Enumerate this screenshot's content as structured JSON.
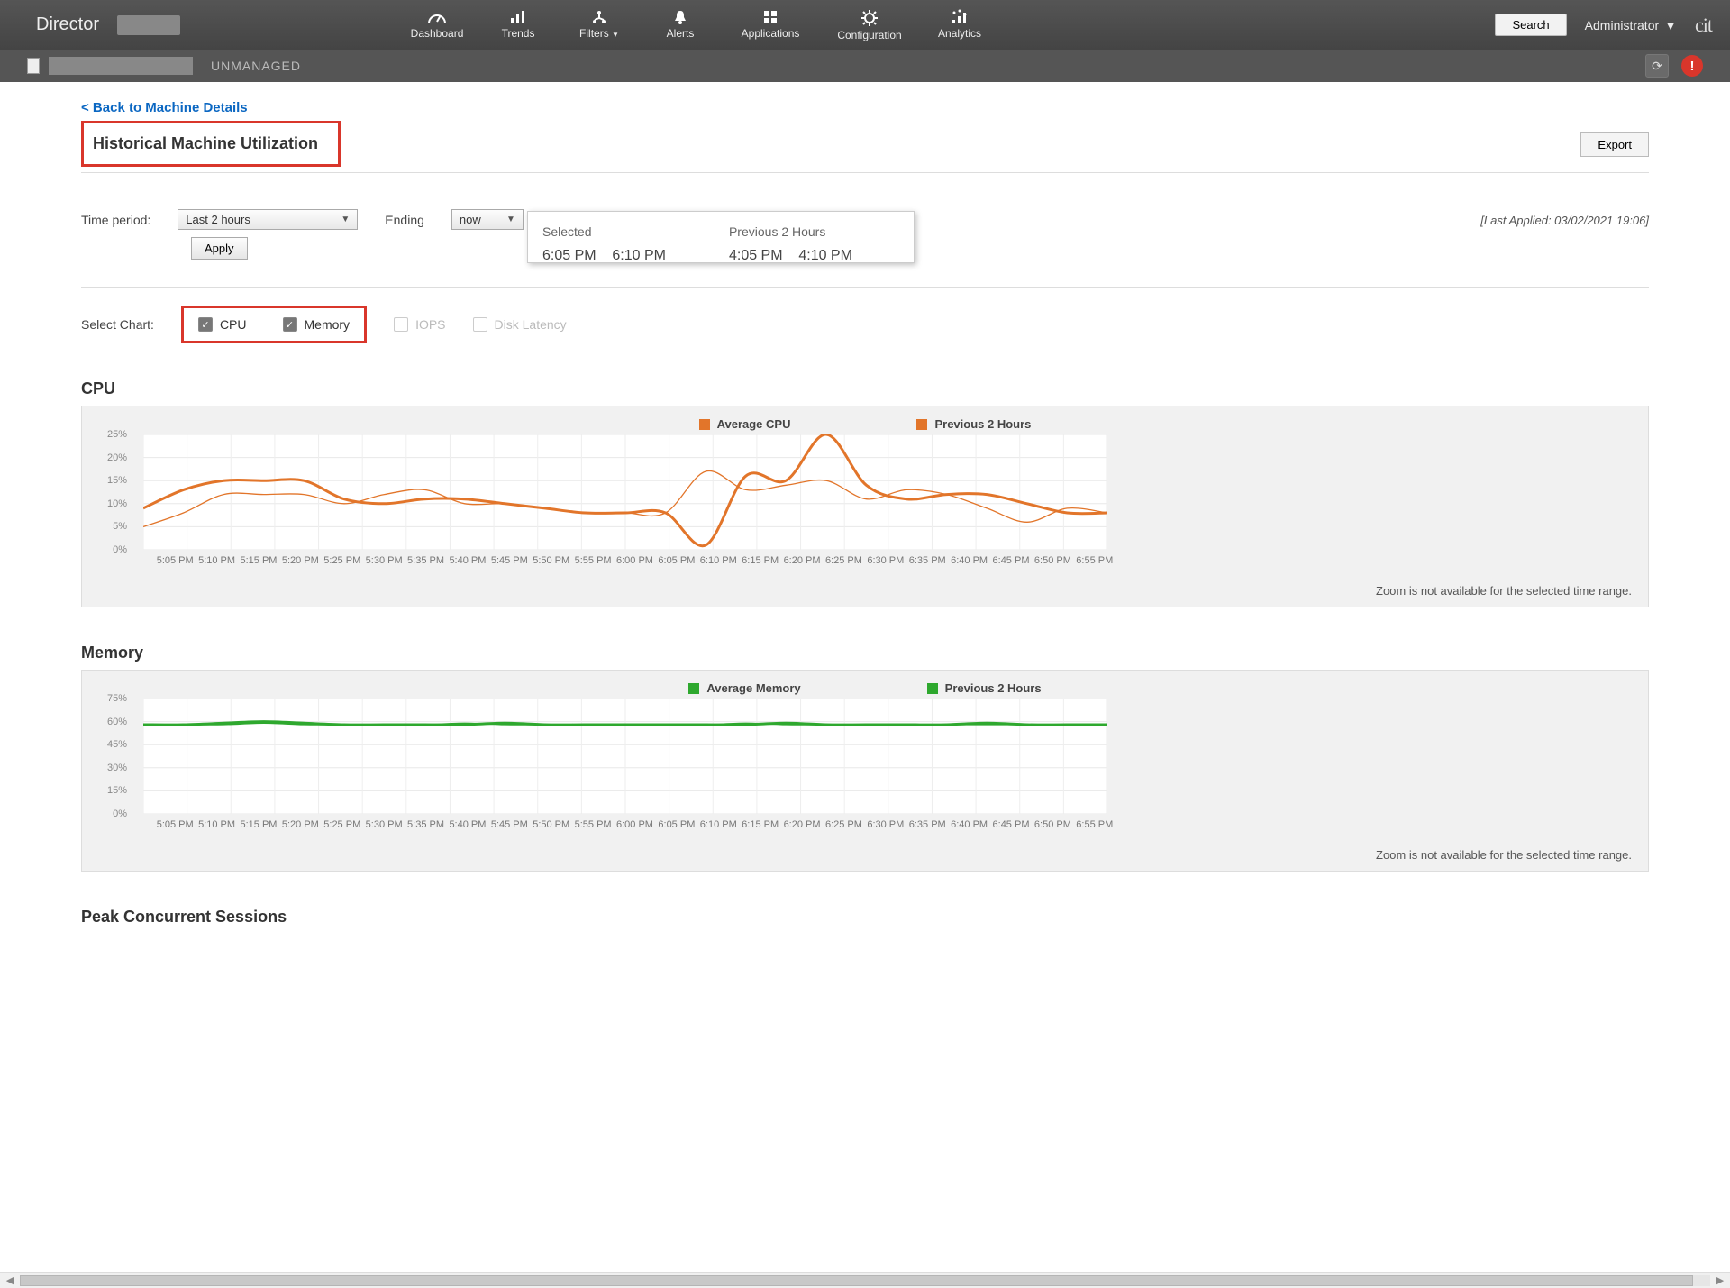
{
  "brand": "Director",
  "topNav": [
    {
      "label": "Dashboard"
    },
    {
      "label": "Trends"
    },
    {
      "label": "Filters"
    },
    {
      "label": "Alerts"
    },
    {
      "label": "Applications"
    },
    {
      "label": "Configuration"
    },
    {
      "label": "Analytics"
    }
  ],
  "searchLabel": "Search",
  "adminLabel": "Administrator",
  "rightLogo": "cit",
  "subbar": {
    "status": "UNMANAGED"
  },
  "backLink": "< Back to Machine Details",
  "pageTitle": "Historical Machine Utilization",
  "exportLabel": "Export",
  "filters": {
    "timePeriodLabel": "Time period:",
    "timePeriodValue": "Last 2 hours",
    "endingLabel": "Ending",
    "endingValue": "now",
    "applyLabel": "Apply",
    "lastApplied": "[Last Applied: 03/02/2021 19:06]"
  },
  "popup": {
    "col1": "Selected",
    "col2": "Previous 2 Hours",
    "t1a": "6:05 PM",
    "t1b": "6:10 PM",
    "t2a": "4:05 PM",
    "t2b": "4:10 PM"
  },
  "selectChartLabel": "Select Chart:",
  "checks": {
    "cpu": "CPU",
    "memory": "Memory",
    "iops": "IOPS",
    "disklat": "Disk Latency"
  },
  "xTicks": [
    "5:05 PM",
    "5:10 PM",
    "5:15 PM",
    "5:20 PM",
    "5:25 PM",
    "5:30 PM",
    "5:35 PM",
    "5:40 PM",
    "5:45 PM",
    "5:50 PM",
    "5:55 PM",
    "6:00 PM",
    "6:05 PM",
    "6:10 PM",
    "6:15 PM",
    "6:20 PM",
    "6:25 PM",
    "6:30 PM",
    "6:35 PM",
    "6:40 PM",
    "6:45 PM",
    "6:50 PM",
    "6:55 PM"
  ],
  "cpu": {
    "title": "CPU",
    "legend1": "Average CPU",
    "legend2": "Previous 2 Hours",
    "color": "#e2752a",
    "ymax": 25,
    "ytick": 5,
    "ylabels": [
      "0%",
      "5%",
      "10%",
      "15%",
      "20%",
      "25%"
    ],
    "seriesAvg": [
      9,
      13,
      15,
      15,
      15,
      11,
      10,
      11,
      11,
      10,
      9,
      8,
      8,
      8,
      1,
      16,
      15,
      25,
      14,
      11,
      12,
      12,
      10,
      8,
      8
    ],
    "seriesPrev": [
      5,
      8,
      12,
      12,
      12,
      10,
      12,
      13,
      10,
      10,
      9,
      8,
      8,
      8,
      17,
      13,
      14,
      15,
      11,
      13,
      12,
      9,
      6,
      9,
      8
    ],
    "zoomNote": "Zoom is not available for the selected time range."
  },
  "memory": {
    "title": "Memory",
    "legend1": "Average Memory",
    "legend2": "Previous 2 Hours",
    "color": "#2ea82e",
    "ymax": 75,
    "ytick": 15,
    "ylabels": [
      "0%",
      "15%",
      "30%",
      "45%",
      "60%",
      "75%"
    ],
    "seriesAvg": [
      58,
      58,
      59,
      60,
      59,
      58,
      58,
      58,
      58,
      59,
      58,
      58,
      58,
      58,
      58,
      58,
      59,
      58,
      58,
      58,
      58,
      59,
      58,
      58,
      58
    ],
    "seriesPrev": [
      58,
      58,
      58,
      59,
      58,
      58,
      58,
      58,
      59,
      58,
      58,
      58,
      58,
      58,
      58,
      59,
      58,
      58,
      58,
      58,
      58,
      58,
      58,
      58,
      58
    ],
    "zoomNote": "Zoom is not available for the selected time range."
  },
  "peakTitle": "Peak Concurrent Sessions"
}
